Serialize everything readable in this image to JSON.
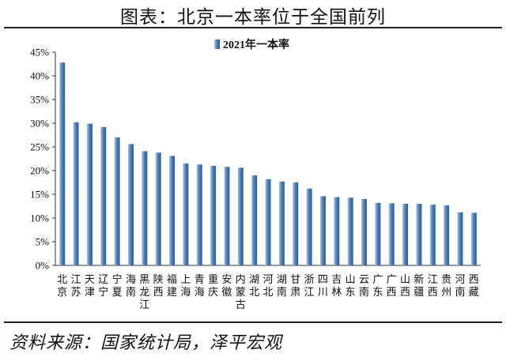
{
  "header": {
    "title": "图表：北京一本率位于全国前列"
  },
  "footer": {
    "source": "资料来源：国家统计局，泽平宏观"
  },
  "colors": {
    "bar_light": "#a9c9ec",
    "bar_mid": "#4f81bd",
    "bar_dark": "#2f5a8c",
    "axis": "#333333"
  },
  "chart_data": {
    "type": "bar",
    "title": "",
    "xlabel": "",
    "ylabel": "",
    "ylim": [
      0,
      45
    ],
    "yticks": [
      "0%",
      "5%",
      "10%",
      "15%",
      "20%",
      "25%",
      "30%",
      "35%",
      "40%",
      "45%"
    ],
    "legend": {
      "position": "top-center"
    },
    "categories": [
      "北京",
      "江苏",
      "天津",
      "辽宁",
      "宁夏",
      "海南",
      "黑龙江",
      "陕西",
      "福建",
      "上海",
      "青海",
      "重庆",
      "安徽",
      "内蒙古",
      "湖北",
      "河北",
      "湖南",
      "甘肃",
      "浙江",
      "四川",
      "吉林",
      "山东",
      "云南",
      "广东",
      "广西",
      "山西",
      "新疆",
      "江西",
      "贵州",
      "河南",
      "西藏"
    ],
    "series": [
      {
        "name": "2021年一本率",
        "values": [
          42.8,
          30.2,
          29.9,
          29.2,
          27.0,
          25.6,
          24.1,
          23.8,
          23.1,
          21.5,
          21.3,
          21.0,
          20.8,
          20.6,
          19.0,
          18.2,
          17.7,
          17.5,
          16.2,
          14.6,
          14.4,
          14.3,
          14.0,
          13.2,
          13.1,
          13.0,
          13.0,
          12.8,
          12.7,
          11.2,
          11.1
        ]
      }
    ]
  }
}
